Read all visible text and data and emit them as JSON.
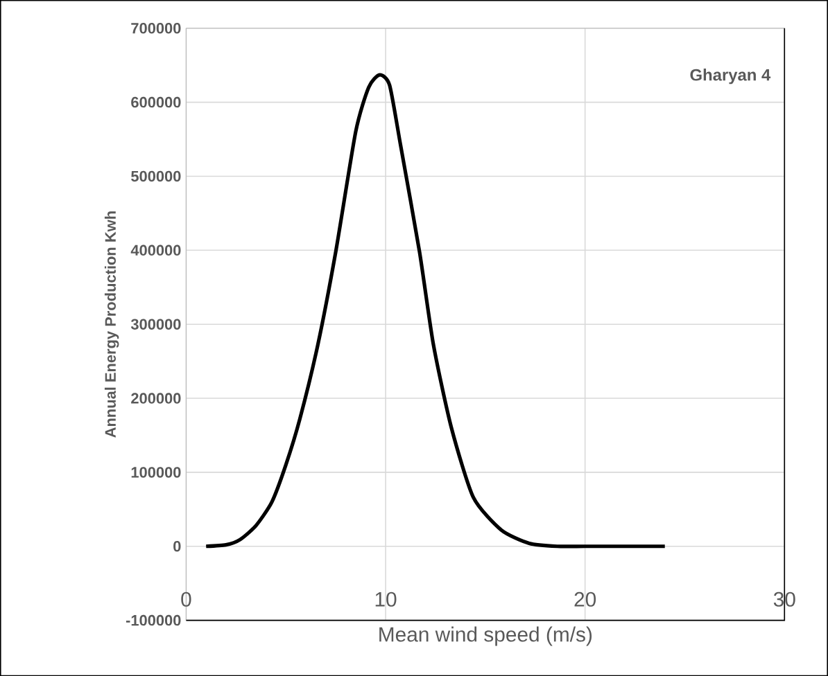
{
  "chart_data": {
    "type": "line",
    "xlabel": "Mean wind speed (m/s)",
    "ylabel": "Annual Energy Production Kwh",
    "annotations": [
      "Gharyan 4"
    ],
    "series": [
      {
        "color": "#000000",
        "x": [
          1,
          2,
          2.7,
          3.5,
          4.3,
          5,
          5.7,
          6.6,
          7.5,
          8.5,
          9.15,
          9.7,
          10.2,
          10.75,
          11.7,
          12.4,
          13.3,
          14.4,
          15.8,
          17.2,
          18.6,
          20,
          22,
          24
        ],
        "values": [
          0,
          2000,
          9000,
          28000,
          60000,
          110000,
          172000,
          272000,
          398000,
          560000,
          620000,
          637000,
          623000,
          542000,
          398000,
          272000,
          160000,
          66000,
          22000,
          4000,
          0,
          0,
          0,
          0
        ]
      }
    ],
    "xlim": [
      0,
      30
    ],
    "xticks": [
      0,
      10,
      20,
      30
    ],
    "ylim": [
      -100000,
      700000
    ],
    "yticks": [
      -100000,
      0,
      100000,
      200000,
      300000,
      400000,
      500000,
      600000,
      700000
    ],
    "grid": true,
    "marker": "none",
    "line_style": "solid"
  }
}
